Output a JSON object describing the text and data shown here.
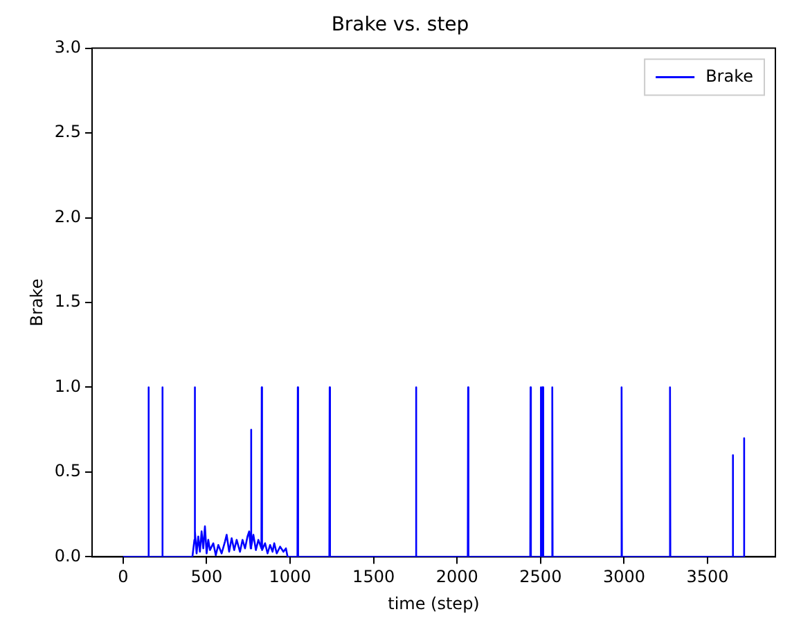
{
  "chart_data": {
    "type": "line",
    "title": "Brake vs. step",
    "xlabel": "time (step)",
    "ylabel": "Brake",
    "xlim": [
      -186,
      3906
    ],
    "xticks": [
      0,
      500,
      1000,
      1500,
      2000,
      2500,
      3000,
      3500
    ],
    "ylim": [
      0,
      3
    ],
    "yticks": [
      {
        "value": 0,
        "label": "0.0"
      },
      {
        "value": 0.5,
        "label": "0.5"
      },
      {
        "value": 1,
        "label": "1.0"
      },
      {
        "value": 1.5,
        "label": "1.5"
      },
      {
        "value": 2,
        "label": "2.0"
      },
      {
        "value": 2.5,
        "label": "2.5"
      },
      {
        "value": 3,
        "label": "3.0"
      }
    ],
    "grid": false,
    "legend": "top right",
    "marker": "none",
    "line_style": "solid",
    "series": [
      {
        "name": "Brake",
        "color": "#0000ff",
        "x": [
          0,
          150,
          152,
          154,
          233,
          235,
          237,
          415,
          427,
          429,
          431,
          440,
          450,
          460,
          470,
          480,
          490,
          500,
          510,
          520,
          540,
          555,
          570,
          590,
          610,
          620,
          635,
          650,
          665,
          680,
          700,
          715,
          730,
          745,
          755,
          764,
          766,
          768,
          780,
          795,
          810,
          828,
          830,
          832,
          850,
          865,
          880,
          895,
          905,
          920,
          940,
          960,
          975,
          985,
          1044,
          1046,
          1048,
          1235,
          1237,
          1239,
          1752,
          1754,
          1756,
          2064,
          2066,
          2068,
          2438,
          2440,
          2442,
          2498,
          2500,
          2502,
          2504,
          2506,
          2510,
          2512,
          2514,
          2516,
          2568,
          2570,
          2572,
          2983,
          2985,
          2987,
          3273,
          3275,
          3277,
          3649,
          3651,
          3653,
          3716,
          3718,
          3720
        ],
        "values": [
          0,
          0,
          1,
          0,
          0,
          1,
          0,
          0,
          0.1,
          1,
          0.15,
          0.02,
          0.12,
          0.03,
          0.15,
          0.05,
          0.18,
          0.02,
          0.1,
          0.04,
          0.08,
          0.01,
          0.07,
          0.02,
          0.09,
          0.13,
          0.03,
          0.11,
          0.04,
          0.1,
          0.03,
          0.1,
          0.05,
          0.12,
          0.15,
          0.05,
          0.75,
          0.06,
          0.13,
          0.04,
          0.1,
          0.05,
          1,
          0.04,
          0.08,
          0.02,
          0.07,
          0.03,
          0.08,
          0.02,
          0.06,
          0.03,
          0.05,
          0,
          0,
          1,
          0,
          0,
          1,
          0,
          0,
          1,
          0,
          0,
          1,
          0,
          0,
          1,
          0,
          0,
          1,
          0,
          1,
          0,
          1,
          0,
          1,
          0,
          0,
          1,
          0,
          0,
          1,
          0,
          0,
          1,
          0,
          0,
          0.6,
          0,
          0,
          0.7,
          0
        ]
      }
    ]
  }
}
